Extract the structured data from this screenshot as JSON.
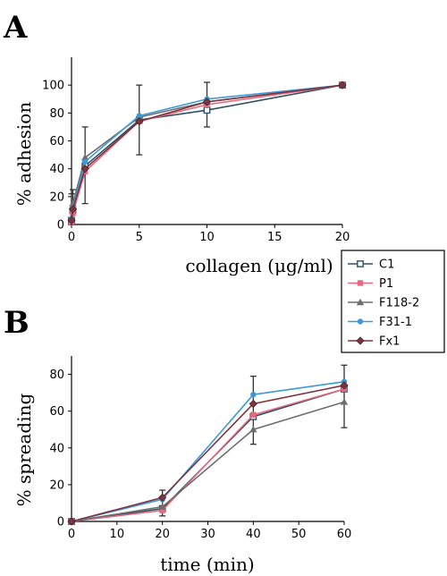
{
  "chart_data": [
    {
      "type": "line",
      "panel_label": "A",
      "xlabel": "collagen (μg/ml)",
      "ylabel": "% adhesion",
      "xlim": [
        0,
        20
      ],
      "ylim": [
        0,
        120
      ],
      "xticks": [
        0,
        5,
        10,
        15,
        20
      ],
      "yticks": [
        0,
        20,
        40,
        60,
        80,
        100
      ],
      "grid": false,
      "x": [
        0,
        0.1,
        1,
        5,
        10,
        20
      ],
      "series": [
        {
          "name": "C1",
          "color": "#2f4f63",
          "marker": "square-open",
          "values": [
            3,
            10,
            42,
            75,
            82,
            100
          ]
        },
        {
          "name": "P1",
          "color": "#e8687f",
          "marker": "square",
          "values": [
            2,
            8,
            38,
            74,
            86,
            100
          ]
        },
        {
          "name": "F118-2",
          "color": "#6e6e6e",
          "marker": "triangle",
          "values": [
            5,
            15,
            48,
            77,
            88,
            100
          ]
        },
        {
          "name": "F31-1",
          "color": "#3d9ad6",
          "marker": "circle",
          "values": [
            4,
            12,
            45,
            78,
            90,
            100
          ]
        },
        {
          "name": "Fx1",
          "color": "#7a3540",
          "marker": "diamond",
          "values": [
            3,
            11,
            40,
            74,
            88,
            100
          ]
        }
      ],
      "error_bars": [
        {
          "x": 0,
          "low": 0,
          "high": 22
        },
        {
          "x": 0.1,
          "low": 0,
          "high": 25
        },
        {
          "x": 1,
          "low": 15,
          "high": 70
        },
        {
          "x": 5,
          "low": 50,
          "high": 100
        },
        {
          "x": 10,
          "low": 70,
          "high": 102
        }
      ]
    },
    {
      "type": "line",
      "panel_label": "B",
      "xlabel": "time (min)",
      "ylabel": "% spreading",
      "xlim": [
        0,
        60
      ],
      "ylim": [
        0,
        90
      ],
      "xticks": [
        0,
        10,
        20,
        30,
        40,
        50,
        60
      ],
      "yticks": [
        0,
        20,
        40,
        60,
        80
      ],
      "grid": false,
      "x": [
        0,
        20,
        40,
        60
      ],
      "series": [
        {
          "name": "C1",
          "color": "#2f4f63",
          "marker": "square-open",
          "values": [
            0,
            7,
            57,
            72
          ]
        },
        {
          "name": "P1",
          "color": "#e8687f",
          "marker": "square",
          "values": [
            0,
            6,
            58,
            72
          ]
        },
        {
          "name": "F118-2",
          "color": "#6e6e6e",
          "marker": "triangle",
          "values": [
            0,
            8,
            50,
            65
          ]
        },
        {
          "name": "F31-1",
          "color": "#3d9ad6",
          "marker": "circle",
          "values": [
            0,
            12,
            69,
            76
          ]
        },
        {
          "name": "Fx1",
          "color": "#7a3540",
          "marker": "diamond",
          "values": [
            0,
            13,
            64,
            74
          ]
        }
      ],
      "error_bars": [
        {
          "x": 20,
          "low": 3,
          "high": 17
        },
        {
          "x": 40,
          "low": 42,
          "high": 79
        },
        {
          "x": 60,
          "low": 51,
          "high": 85
        }
      ]
    }
  ],
  "legend": {
    "placement": "right",
    "entries": [
      "C1",
      "P1",
      "F118-2",
      "F31-1",
      "Fx1"
    ]
  }
}
